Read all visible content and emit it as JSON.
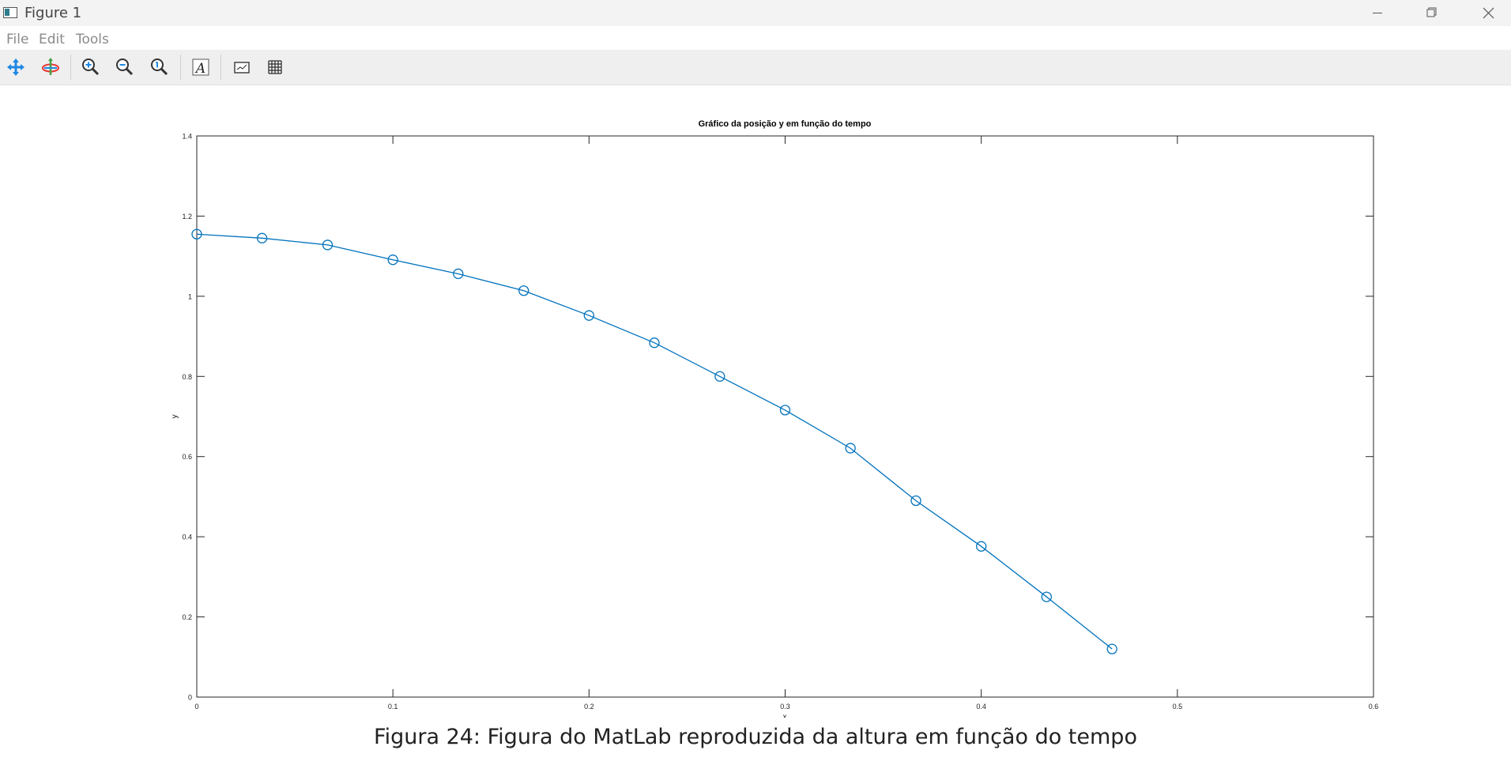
{
  "window": {
    "title": "Figure 1"
  },
  "menu": [
    "File",
    "Edit",
    "Tools"
  ],
  "toolbar": {
    "buttons": [
      "pan-icon",
      "rotate-icon",
      "zoom-in-icon",
      "zoom-out-icon",
      "zoom-reset-icon",
      "text-insert-icon",
      "axes-toggle-icon",
      "grid-toggle-icon"
    ]
  },
  "colors": {
    "series": "#0072bd",
    "titlebar": "#f3f3f3",
    "toolbar": "#efefef"
  },
  "chart_data": {
    "type": "line",
    "title": "Gráfico da posição y em função do tempo",
    "xlabel": "x",
    "ylabel": "y",
    "xlim": [
      0,
      0.6
    ],
    "ylim": [
      0,
      1.4
    ],
    "xticks": [
      "0",
      "0.1",
      "0.2",
      "0.3",
      "0.4",
      "0.5",
      "0.6"
    ],
    "yticks": [
      "0",
      "0.2",
      "0.4",
      "0.6",
      "0.8",
      "1",
      "1.2",
      "1.4"
    ],
    "marker": "circle",
    "grid": false,
    "series": [
      {
        "x": [
          0,
          0.0333,
          0.0667,
          0.1,
          0.1333,
          0.1667,
          0.2,
          0.2333,
          0.2667,
          0.3,
          0.3333,
          0.3667,
          0.4,
          0.4333,
          0.4667
        ],
        "y": [
          1.155,
          1.145,
          1.128,
          1.091,
          1.056,
          1.014,
          0.952,
          0.884,
          0.8,
          0.716,
          0.621,
          0.49,
          0.376,
          0.25,
          0.12
        ]
      }
    ]
  },
  "caption": "Figura 24: Figura do MatLab reproduzida da altura em função do tempo"
}
